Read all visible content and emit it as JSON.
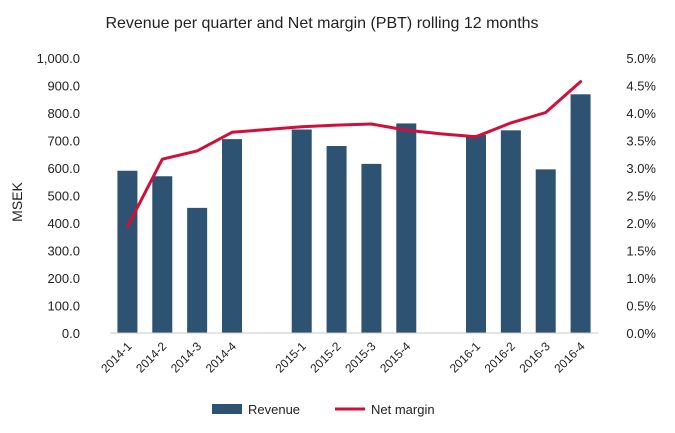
{
  "chart_data": {
    "type": "bar",
    "title": "Revenue per quarter and Net margin (PBT) rolling 12 months",
    "ylabel": "MSEK",
    "y2label": "",
    "ylim": [
      0,
      1000
    ],
    "y2lim": [
      0,
      5
    ],
    "yticks": [
      "0.0",
      "100.0",
      "200.0",
      "300.0",
      "400.0",
      "500.0",
      "600.0",
      "700.0",
      "800.0",
      "900.0",
      "1,000.0"
    ],
    "y2ticks": [
      "0.0%",
      "0.5%",
      "1.0%",
      "1.5%",
      "2.0%",
      "2.5%",
      "3.0%",
      "3.5%",
      "4.0%",
      "4.5%",
      "5.0%"
    ],
    "categories": [
      "2014-1",
      "2014-2",
      "2014-3",
      "2014-4",
      "",
      "2015-1",
      "2015-2",
      "2015-3",
      "2015-4",
      "",
      "2016-1",
      "2016-2",
      "2016-3",
      "2016-4"
    ],
    "series": [
      {
        "name": "Revenue",
        "type": "bar",
        "axis": "left",
        "color": "#2E5272",
        "values": [
          590,
          570,
          455,
          705,
          null,
          740,
          680,
          615,
          762,
          null,
          720,
          737,
          595,
          868
        ]
      },
      {
        "name": "Net margin",
        "type": "line",
        "axis": "right",
        "unit": "%",
        "color": "#D0103A",
        "values": [
          1.93,
          3.16,
          3.31,
          3.65,
          3.7,
          3.75,
          3.78,
          3.8,
          3.69,
          3.62,
          3.57,
          3.82,
          4.01,
          4.57
        ]
      }
    ],
    "legend": "bottom",
    "grid": false
  }
}
